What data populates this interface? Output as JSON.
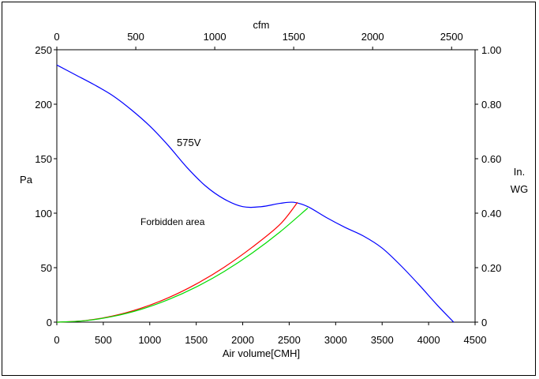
{
  "chart_data": {
    "type": "line",
    "title": "",
    "xlabel": "Air volume[CMH]",
    "ylabel_left": "Pa",
    "ylabel_right": [
      "In.",
      "WG"
    ],
    "xlabel_top": "cfm",
    "xlim": [
      0,
      4500
    ],
    "ylim": [
      0,
      250
    ],
    "x_ticks": [
      "0",
      "500",
      "1000",
      "1500",
      "2000",
      "2500",
      "3000",
      "3500",
      "4000",
      "4500"
    ],
    "y_ticks_left": [
      "0",
      "50",
      "100",
      "150",
      "200",
      "250"
    ],
    "x_ticks_top": [
      "0",
      "500",
      "1000",
      "1500",
      "2000",
      "2500"
    ],
    "y_ticks_right": [
      "0",
      "0.20",
      "0.40",
      "0.60",
      "0.80",
      "1.00"
    ],
    "grid": false,
    "annotations": [
      "575V",
      "Forbidden area"
    ],
    "series": [
      {
        "color": "#0000ff",
        "points": [
          [
            0,
            236
          ],
          [
            200,
            227
          ],
          [
            400,
            218
          ],
          [
            600,
            208
          ],
          [
            800,
            195
          ],
          [
            1000,
            180
          ],
          [
            1200,
            162
          ],
          [
            1400,
            142
          ],
          [
            1600,
            125
          ],
          [
            1800,
            113
          ],
          [
            2000,
            106
          ],
          [
            2200,
            106
          ],
          [
            2400,
            109
          ],
          [
            2550,
            110
          ],
          [
            2700,
            106
          ],
          [
            2900,
            96
          ],
          [
            3100,
            87
          ],
          [
            3300,
            79
          ],
          [
            3500,
            68
          ],
          [
            3700,
            52
          ],
          [
            3900,
            34
          ],
          [
            4100,
            15
          ],
          [
            4270,
            0
          ]
        ]
      },
      {
        "color": "#ff0000",
        "points": [
          [
            0,
            0
          ],
          [
            300,
            1.4
          ],
          [
            600,
            5.6
          ],
          [
            900,
            12.6
          ],
          [
            1200,
            22.4
          ],
          [
            1500,
            35
          ],
          [
            1800,
            50.4
          ],
          [
            2100,
            68.6
          ],
          [
            2400,
            89.6
          ],
          [
            2590,
            110
          ]
        ]
      },
      {
        "color": "#00dd00",
        "points": [
          [
            0,
            0
          ],
          [
            300,
            1.3
          ],
          [
            600,
            5.2
          ],
          [
            900,
            11.6
          ],
          [
            1200,
            20.7
          ],
          [
            1500,
            32.3
          ],
          [
            1800,
            46.5
          ],
          [
            2100,
            63.3
          ],
          [
            2400,
            82.7
          ],
          [
            2700,
            104.7
          ]
        ]
      }
    ]
  }
}
